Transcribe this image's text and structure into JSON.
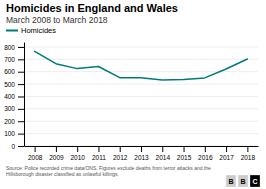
{
  "chart_data": {
    "type": "line",
    "title": "Homicides in England and Wales",
    "subtitle": "March 2008 to March 2018",
    "footnote": "Source: Police recorded crime data/ONS. Figures exclude deaths from terror attacks and the\nHillsborough disaster classified as unlawful killings.",
    "x": [
      2008,
      2009,
      2010,
      2011,
      2012,
      2013,
      2014,
      2015,
      2016,
      2017,
      2018
    ],
    "series": [
      {
        "name": "Homicides",
        "color": "#007a7a",
        "values": [
          765,
          665,
          625,
          642,
          552,
          552,
          534,
          537,
          550,
          622,
          703
        ]
      }
    ],
    "xlim": [
      2007.5,
      2018.5
    ],
    "xticks": [
      2008,
      2009,
      2010,
      2011,
      2012,
      2013,
      2014,
      2015,
      2016,
      2017,
      2018
    ],
    "ylim": [
      0,
      840
    ],
    "yticks": [
      0,
      100,
      200,
      300,
      400,
      500,
      600,
      700,
      800
    ],
    "grid": true,
    "legend": "top-left",
    "annotations": [
      {
        "text": "B",
        "color": "#cccccc"
      },
      {
        "text": "B",
        "color": "#cccccc"
      },
      {
        "text": "C",
        "color": "#000000"
      }
    ]
  }
}
